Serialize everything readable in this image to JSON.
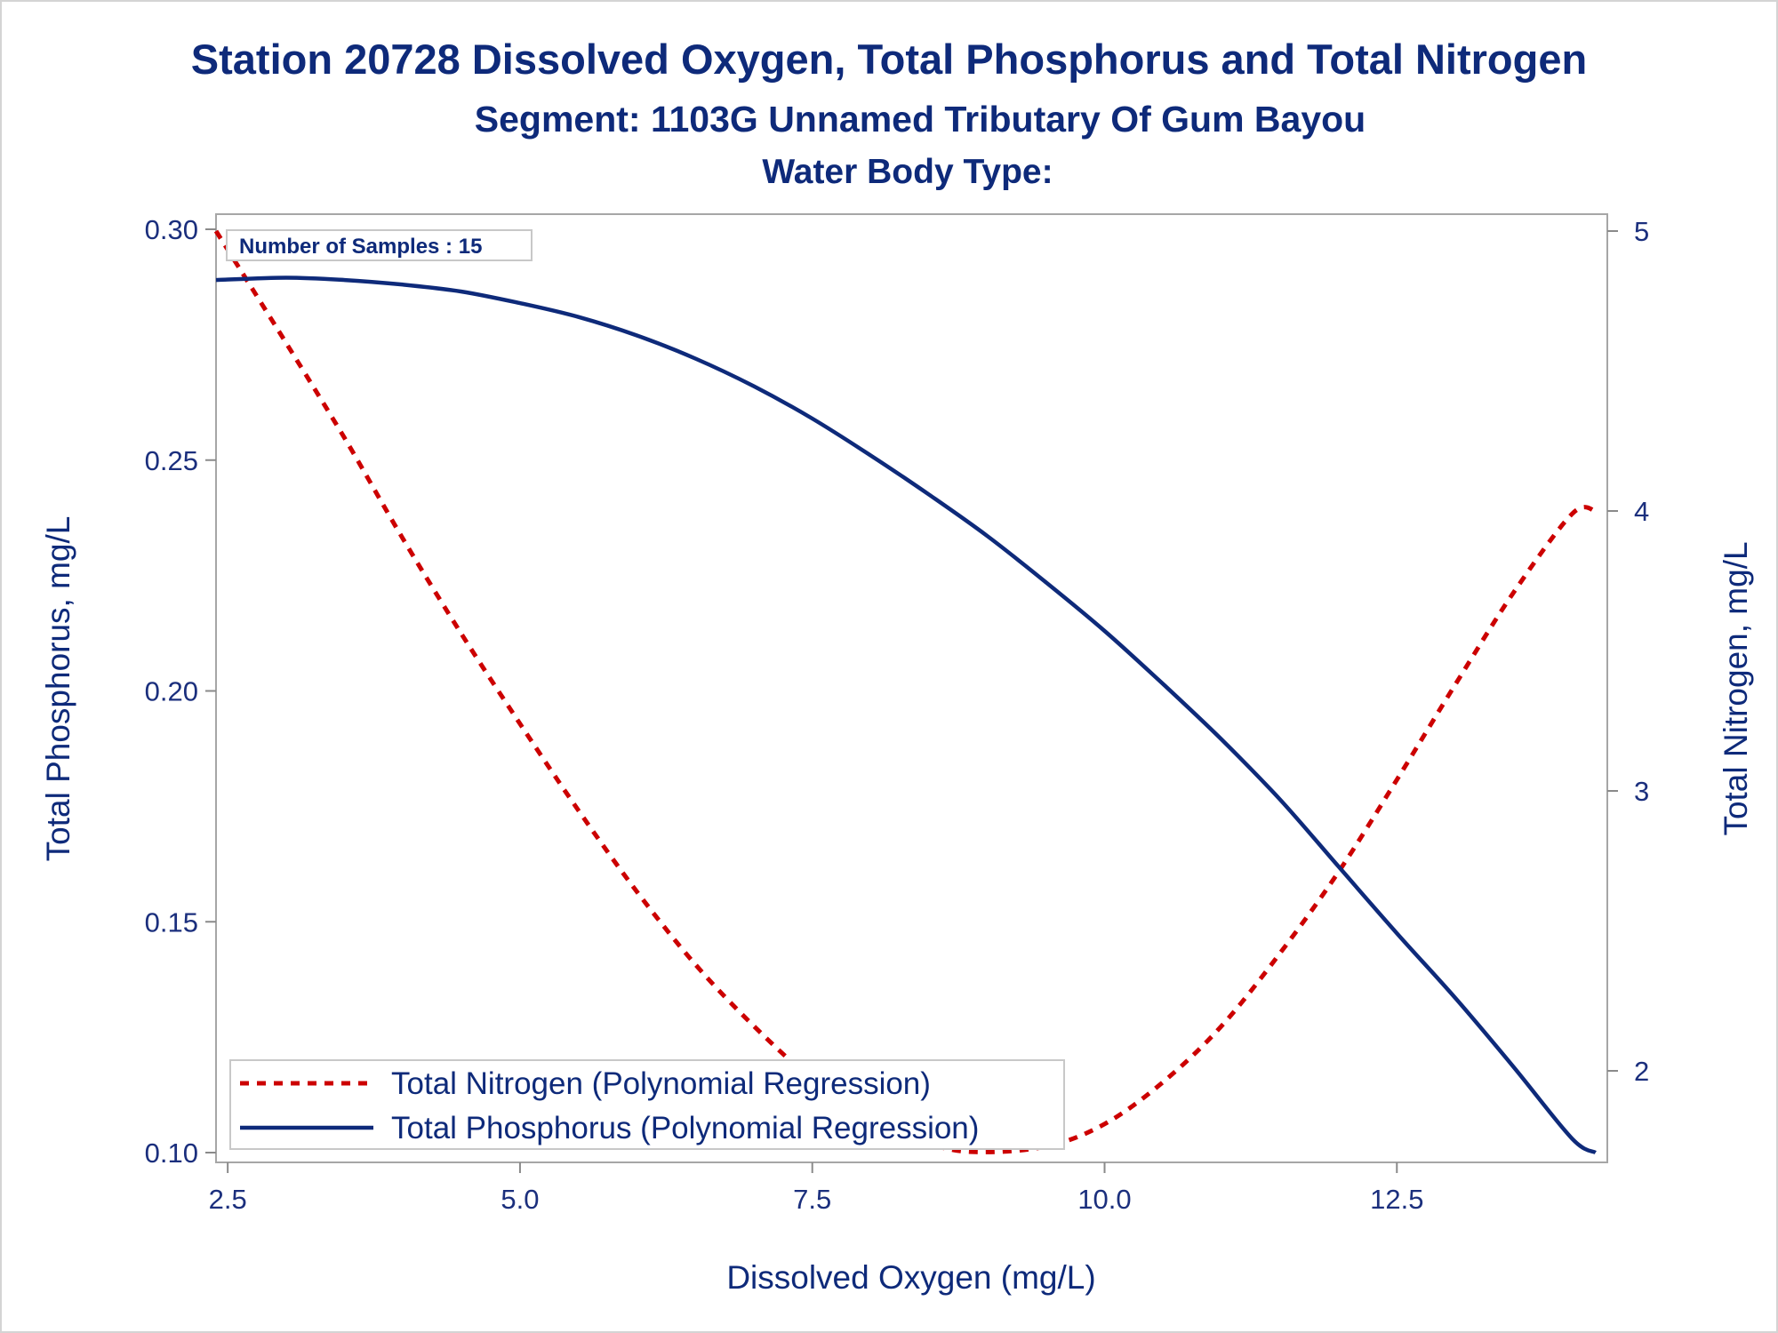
{
  "chart_data": {
    "type": "line",
    "title": "Station 20728  Dissolved Oxygen, Total Phosphorus and Total Nitrogen",
    "subtitle": "Segment: 1103G  Unnamed Tributary Of Gum Bayou",
    "subtitle2": "Water Body Type:",
    "xlabel": "Dissolved Oxygen (mg/L)",
    "ylabel_left": "Total Phosphorus, mg/L",
    "ylabel_right": "Total Nitrogen, mg/L",
    "annotation": "Number of Samples : 15",
    "xlim": [
      2.4,
      14.3
    ],
    "ylim_left": [
      0.1,
      0.3
    ],
    "ylim_right": [
      1.7,
      5.0
    ],
    "x_ticks": [
      "2.5",
      "5.0",
      "7.5",
      "10.0",
      "12.5"
    ],
    "y_left_ticks": [
      "0.10",
      "0.15",
      "0.20",
      "0.25",
      "0.30"
    ],
    "y_right_ticks": [
      "2",
      "3",
      "4",
      "5"
    ],
    "grid": false,
    "legend_position": "bottom-left",
    "series": [
      {
        "name": "Total Nitrogen (Polynomial Regression)",
        "axis": "right",
        "style": "dashed",
        "color": "#cc0000",
        "x": [
          2.4,
          3.0,
          3.5,
          4.0,
          4.5,
          5.0,
          5.5,
          6.0,
          6.5,
          7.0,
          7.5,
          8.0,
          8.5,
          8.9,
          9.5,
          10.0,
          10.5,
          11.0,
          11.5,
          12.0,
          12.5,
          13.0,
          13.5,
          14.0,
          14.2
        ],
        "values": [
          5.0,
          4.6,
          4.26,
          3.9,
          3.56,
          3.24,
          2.93,
          2.64,
          2.38,
          2.16,
          1.97,
          1.83,
          1.74,
          1.71,
          1.73,
          1.81,
          1.96,
          2.16,
          2.42,
          2.71,
          3.04,
          3.38,
          3.71,
          3.99,
          4.0
        ]
      },
      {
        "name": "Total Phosphorus (Polynomial Regression)",
        "axis": "left",
        "style": "solid",
        "color": "#0e2a7a",
        "x": [
          2.4,
          3.0,
          3.5,
          4.0,
          4.5,
          5.0,
          5.5,
          6.0,
          6.5,
          7.0,
          7.5,
          8.0,
          8.5,
          9.0,
          9.5,
          10.0,
          10.5,
          11.0,
          11.5,
          12.0,
          12.5,
          13.0,
          13.5,
          14.0,
          14.2
        ],
        "values": [
          0.289,
          0.2895,
          0.289,
          0.288,
          0.2865,
          0.284,
          0.281,
          0.277,
          0.272,
          0.266,
          0.259,
          0.251,
          0.2425,
          0.2335,
          0.2235,
          0.213,
          0.2015,
          0.1895,
          0.1765,
          0.162,
          0.1475,
          0.1335,
          0.1185,
          0.103,
          0.1
        ]
      }
    ]
  }
}
